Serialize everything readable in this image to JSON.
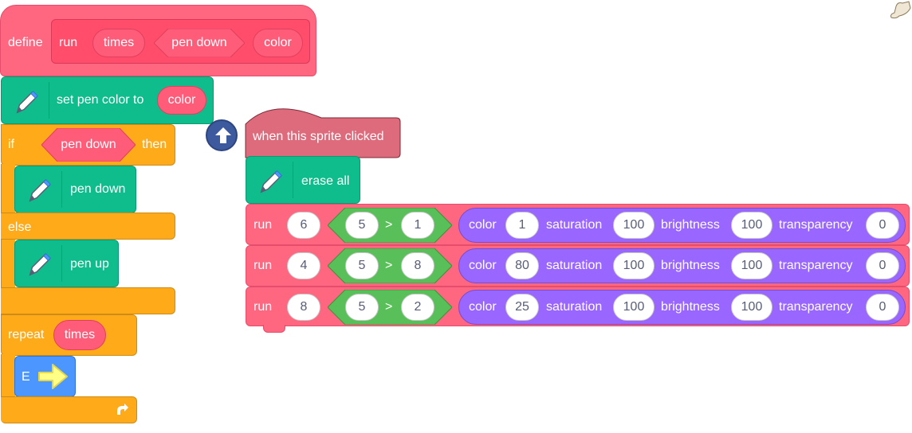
{
  "colors": {
    "custom": "#ff6680",
    "custom_dark": "#e64d6a",
    "pen": "#0fbd8c",
    "control": "#ffab19",
    "operator": "#59c059",
    "looks": "#9966ff",
    "event_hat": "#dd6b7c",
    "motion": "#4c97ff"
  },
  "define": {
    "keyword": "define",
    "name": "run",
    "param_times": "times",
    "param_pen_down": "pen down",
    "param_color": "color"
  },
  "set_pen_color": {
    "label": "set pen color to",
    "arg": "color"
  },
  "if_block": {
    "if_label": "if",
    "condition": "pen down",
    "then_label": "then",
    "else_label": "else"
  },
  "pen_down_block": {
    "label": "pen down"
  },
  "pen_up_block": {
    "label": "pen up"
  },
  "repeat": {
    "label": "repeat",
    "arg": "times"
  },
  "custom_arrow_block": {
    "label": "E"
  },
  "hat": {
    "label": "when this sprite clicked"
  },
  "erase_all": {
    "label": "erase all"
  },
  "run_calls": [
    {
      "run": "run",
      "times": "6",
      "left": "5",
      "op": ">",
      "right": "1",
      "color_label": "color",
      "color": "1",
      "saturation_label": "saturation",
      "saturation": "100",
      "brightness_label": "brightness",
      "brightness": "100",
      "transparency_label": "transparency",
      "transparency": "0"
    },
    {
      "run": "run",
      "times": "4",
      "left": "5",
      "op": ">",
      "right": "8",
      "color_label": "color",
      "color": "80",
      "saturation_label": "saturation",
      "saturation": "100",
      "brightness_label": "brightness",
      "brightness": "100",
      "transparency_label": "transparency",
      "transparency": "0"
    },
    {
      "run": "run",
      "times": "8",
      "left": "5",
      "op": ">",
      "right": "2",
      "color_label": "color",
      "color": "25",
      "saturation_label": "saturation",
      "saturation": "100",
      "brightness_label": "brightness",
      "brightness": "100",
      "transparency_label": "transparency",
      "transparency": "0"
    }
  ]
}
